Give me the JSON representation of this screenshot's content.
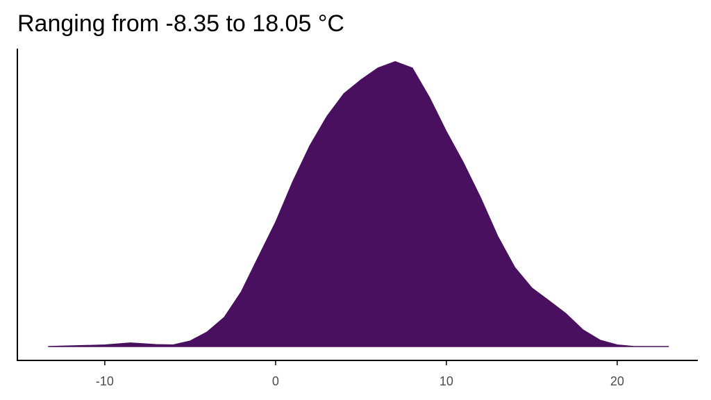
{
  "chart_data": {
    "type": "area",
    "title": "Ranging from -8.35 to 18.05 °C",
    "x": [
      -13.3,
      -10,
      -8.5,
      -7,
      -6,
      -5,
      -4,
      -3,
      -2,
      -1,
      0,
      1,
      2,
      3,
      4,
      5,
      6,
      7,
      8,
      9,
      10,
      11,
      12,
      13,
      14,
      15,
      16,
      17,
      18,
      19,
      20,
      21,
      23
    ],
    "values": [
      0,
      0.0004,
      0.0009,
      0.0005,
      0.0004,
      0.0014,
      0.0037,
      0.0074,
      0.0139,
      0.0227,
      0.0314,
      0.0416,
      0.0507,
      0.0581,
      0.0639,
      0.0674,
      0.0704,
      0.072,
      0.0704,
      0.063,
      0.0543,
      0.0464,
      0.0376,
      0.0279,
      0.02,
      0.0148,
      0.0116,
      0.0083,
      0.0042,
      0.0016,
      0.0004,
      0,
      0
    ],
    "color": "#49105f",
    "xlim": [
      -15.12,
      24.72
    ],
    "ylim": [
      -0.0035,
      0.0753
    ],
    "xticks": [
      -10,
      0,
      10,
      20
    ]
  }
}
